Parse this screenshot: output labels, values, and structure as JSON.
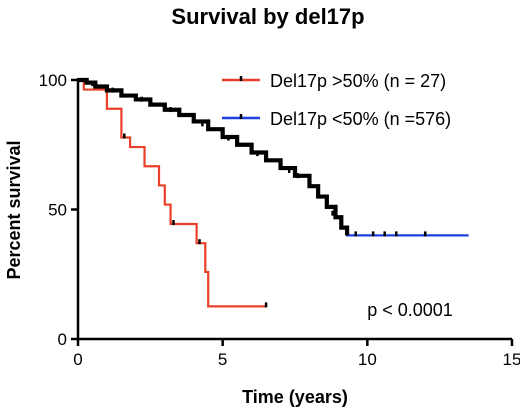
{
  "chart_data": {
    "type": "line",
    "title": "Survival by del17p",
    "xlabel": "Time (years)",
    "ylabel": "Percent survival",
    "xlim": [
      0,
      15
    ],
    "ylim": [
      0,
      100
    ],
    "x_ticks": [
      0,
      5,
      10,
      15
    ],
    "y_ticks": [
      0,
      50,
      100
    ],
    "legend_position": "top-right",
    "annotation": "p < 0.0001",
    "series": [
      {
        "name": "Del17p >50% (n = 27)",
        "color": "#e8402a",
        "step": true,
        "points": [
          [
            0,
            100
          ],
          [
            0.2,
            96.3
          ],
          [
            1.0,
            88.9
          ],
          [
            1.5,
            77.8
          ],
          [
            1.8,
            74.1
          ],
          [
            2.3,
            66.7
          ],
          [
            2.8,
            59.3
          ],
          [
            3.0,
            51.9
          ],
          [
            3.2,
            44.4
          ],
          [
            4.1,
            37.0
          ],
          [
            4.4,
            25.9
          ],
          [
            4.5,
            12.6
          ],
          [
            6.5,
            12.6
          ]
        ],
        "censored": [
          [
            1.6,
            77.8
          ],
          [
            3.3,
            44.4
          ],
          [
            4.2,
            37.0
          ],
          [
            6.5,
            12.6
          ]
        ]
      },
      {
        "name": "Del17p <50% (n =576)",
        "color": "#1f3fe0",
        "step": true,
        "points": [
          [
            0,
            100
          ],
          [
            0.3,
            99
          ],
          [
            0.6,
            97.5
          ],
          [
            1,
            96
          ],
          [
            1.5,
            94
          ],
          [
            2,
            92.5
          ],
          [
            2.5,
            90.5
          ],
          [
            3,
            88.5
          ],
          [
            3.5,
            86.5
          ],
          [
            4,
            84
          ],
          [
            4.5,
            81
          ],
          [
            5,
            78
          ],
          [
            5.5,
            75
          ],
          [
            6,
            72
          ],
          [
            6.5,
            69
          ],
          [
            7,
            66
          ],
          [
            7.5,
            63
          ],
          [
            8,
            59
          ],
          [
            8.3,
            55
          ],
          [
            8.6,
            51
          ],
          [
            8.9,
            47
          ],
          [
            9.1,
            43
          ],
          [
            9.3,
            40
          ],
          [
            13.5,
            40
          ]
        ],
        "censored": [
          [
            0.5,
            98
          ],
          [
            1.2,
            95.5
          ],
          [
            2.2,
            92
          ],
          [
            3.2,
            88
          ],
          [
            4.3,
            82.5
          ],
          [
            5.2,
            77
          ],
          [
            6.2,
            71
          ],
          [
            7.3,
            64.5
          ],
          [
            7.6,
            62.5
          ],
          [
            8.8,
            48
          ],
          [
            9.6,
            40
          ],
          [
            10.2,
            40
          ],
          [
            10.6,
            40
          ],
          [
            11.0,
            40
          ],
          [
            12.0,
            40
          ]
        ]
      }
    ]
  }
}
